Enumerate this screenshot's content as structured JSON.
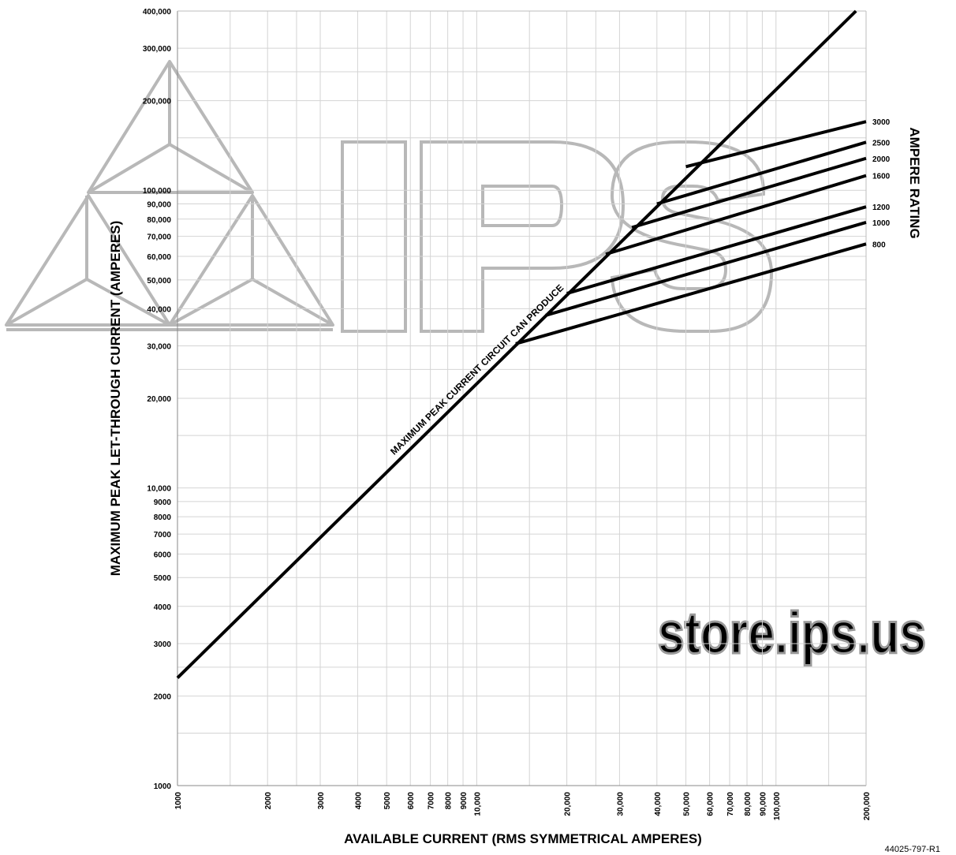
{
  "chart_data": {
    "type": "line",
    "scale": {
      "x": "log",
      "y": "log"
    },
    "xlim": [
      1000,
      200000
    ],
    "ylim": [
      1000,
      400000
    ],
    "grid": true,
    "xlabel": "AVAILABLE CURRENT  (RMS SYMMETRICAL AMPERES)",
    "ylabel": "MAXIMUM PEAK LET-THROUGH CURRENT  (AMPERES)",
    "right_axis_title": "AMPERE RATING",
    "x_ticks": [
      "1000",
      "2000",
      "3000",
      "4000",
      "5000",
      "6000",
      "7000",
      "8000",
      "9000",
      "10,000",
      "20,000",
      "30,000",
      "40,000",
      "50,000",
      "60,000",
      "70,000",
      "80,000",
      "90,000",
      "100,000",
      "200,000"
    ],
    "y_ticks": [
      "1000",
      "2000",
      "3000",
      "4000",
      "5000",
      "6000",
      "7000",
      "8000",
      "9000",
      "10,000",
      "20,000",
      "30,000",
      "40,000",
      "50,000",
      "60,000",
      "70,000",
      "80,000",
      "90,000",
      "100,000",
      "200,000",
      "300,000",
      "400,000"
    ],
    "diagonal": {
      "label": "MAXIMUM PEAK CURRENT CIRCUIT CAN PRODUCE",
      "points": [
        [
          1000,
          2300
        ],
        [
          185000,
          400000
        ]
      ]
    },
    "series": [
      {
        "name": "3000",
        "points": [
          [
            50000,
            120000
          ],
          [
            200000,
            170000
          ]
        ]
      },
      {
        "name": "2500",
        "points": [
          [
            40000,
            90000
          ],
          [
            200000,
            145000
          ]
        ]
      },
      {
        "name": "2000",
        "points": [
          [
            33000,
            75000
          ],
          [
            200000,
            128000
          ]
        ]
      },
      {
        "name": "1600",
        "points": [
          [
            27000,
            61000
          ],
          [
            200000,
            112000
          ]
        ]
      },
      {
        "name": "1200",
        "points": [
          [
            20000,
            45000
          ],
          [
            200000,
            88000
          ]
        ]
      },
      {
        "name": "1000",
        "points": [
          [
            17000,
            38000
          ],
          [
            200000,
            78000
          ]
        ]
      },
      {
        "name": "800",
        "points": [
          [
            13500,
            30500
          ],
          [
            200000,
            66000
          ]
        ]
      }
    ]
  },
  "watermark": {
    "logo": "IPS",
    "url": "store.ips.us"
  },
  "doc_code": "44025-797-R1"
}
